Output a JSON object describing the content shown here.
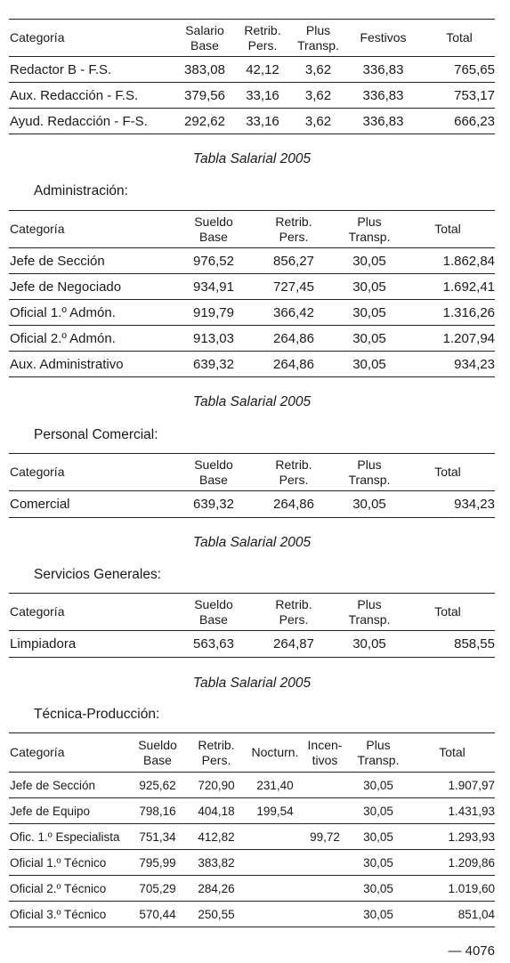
{
  "table1": {
    "headers": [
      [
        "Categoría"
      ],
      [
        "Salario",
        "Base"
      ],
      [
        "Retrib.",
        "Pers."
      ],
      [
        "Plus",
        "Transp."
      ],
      [
        "Festivos"
      ],
      [
        "Total"
      ]
    ],
    "rows": [
      [
        "Redactor B - F.S.",
        "383,08",
        "42,12",
        "3,62",
        "336,83",
        "765,65"
      ],
      [
        "Aux. Redacción - F.S.",
        "379,56",
        "33,16",
        "3,62",
        "336,83",
        "753,17"
      ],
      [
        "Ayud. Redacción - F-S.",
        "292,62",
        "33,16",
        "3,62",
        "336,83",
        "666,23"
      ]
    ]
  },
  "caption1": "Tabla Salarial 2005",
  "section_admin": "Administración:",
  "table_admin": {
    "headers": [
      [
        "Categoría"
      ],
      [
        "Sueldo",
        "Base"
      ],
      [
        "Retrib.",
        "Pers."
      ],
      [
        "Plus",
        "Transp."
      ],
      [
        "Total"
      ]
    ],
    "rows": [
      [
        "Jefe de Sección",
        "976,52",
        "856,27",
        "30,05",
        "1.862,84"
      ],
      [
        "Jefe de Negociado",
        "934,91",
        "727,45",
        "30,05",
        "1.692,41"
      ],
      [
        "Oficial 1.º Admón.",
        "919,79",
        "366,42",
        "30,05",
        "1.316,26"
      ],
      [
        "Oficial 2.º Admón.",
        "913,03",
        "264,86",
        "30,05",
        "1.207,94"
      ],
      [
        "Aux. Administrativo",
        "639,32",
        "264,86",
        "30,05",
        "934,23"
      ]
    ]
  },
  "caption2": "Tabla Salarial 2005",
  "section_comercial": "Personal Comercial:",
  "table_comercial": {
    "headers": [
      [
        "Categoría"
      ],
      [
        "Sueldo",
        "Base"
      ],
      [
        "Retrib.",
        "Pers."
      ],
      [
        "Plus",
        "Transp."
      ],
      [
        "Total"
      ]
    ],
    "rows": [
      [
        "Comercial",
        "639,32",
        "264,86",
        "30,05",
        "934,23"
      ]
    ]
  },
  "caption3": "Tabla Salarial 2005",
  "section_servicios": "Servicios Generales:",
  "table_servicios": {
    "headers": [
      [
        "Categoría"
      ],
      [
        "Sueldo",
        "Base"
      ],
      [
        "Retrib.",
        "Pers."
      ],
      [
        "Plus",
        "Transp."
      ],
      [
        "Total"
      ]
    ],
    "rows": [
      [
        "Limpiadora",
        "563,63",
        "264,87",
        "30,05",
        "858,55"
      ]
    ]
  },
  "caption4": "Tabla Salarial 2005",
  "section_tecnica": "Técnica-Producción:",
  "table_tecnica": {
    "headers": [
      [
        "Categoría"
      ],
      [
        "Sueldo",
        "Base"
      ],
      [
        "Retrib.",
        "Pers."
      ],
      [
        "Nocturn."
      ],
      [
        "Incen-",
        "tivos"
      ],
      [
        "Plus",
        "Transp."
      ],
      [
        "Total"
      ]
    ],
    "rows": [
      [
        "Jefe de Sección",
        "925,62",
        "720,90",
        "231,40",
        "",
        "30,05",
        "1.907,97"
      ],
      [
        "Jefe de Equipo",
        "798,16",
        "404,18",
        "199,54",
        "",
        "30,05",
        "1.431,93"
      ],
      [
        "Ofic. 1.º Especialista",
        "751,34",
        "412,82",
        "",
        "99,72",
        "30,05",
        "1.293,93"
      ],
      [
        "Oficial 1.º Técnico",
        "795,99",
        "383,82",
        "",
        "",
        "30,05",
        "1.209,86"
      ],
      [
        "Oficial 2.º Técnico",
        "705,29",
        "284,26",
        "",
        "",
        "30,05",
        "1.019,60"
      ],
      [
        "Oficial 3.º Técnico",
        "570,44",
        "250,55",
        "",
        "",
        "30,05",
        "851,04"
      ]
    ]
  },
  "footer": "— 4076"
}
